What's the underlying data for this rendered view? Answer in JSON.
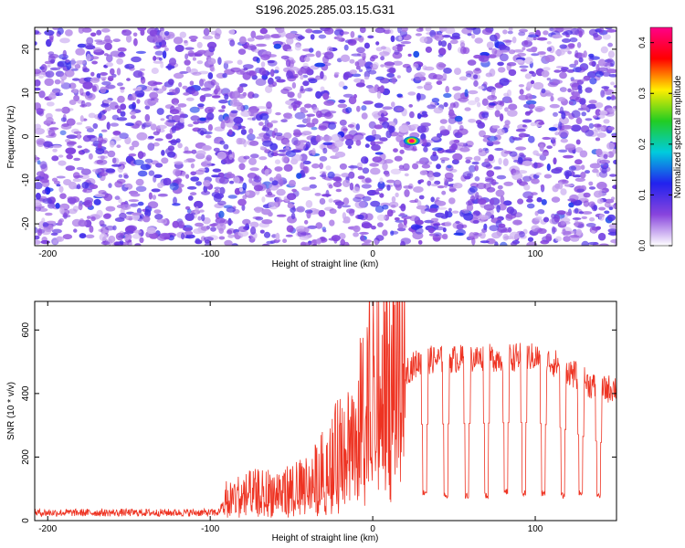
{
  "title": "S196.2025.285.03.15.G31",
  "chart_data": [
    {
      "type": "heatmap",
      "xlabel": "Height of straight line (km)",
      "ylabel": "Frequency (Hz)",
      "xlim": [
        -208,
        150
      ],
      "ylim": [
        -25,
        25
      ],
      "xticks": [
        -200,
        -100,
        0,
        100
      ],
      "yticks": [
        -20,
        -10,
        0,
        10,
        20
      ],
      "colorbar": {
        "label": "Normalized spectral amplitude",
        "range": [
          0,
          0.43
        ],
        "ticks": [
          0.0,
          0.1,
          0.2,
          0.3,
          0.4
        ],
        "colors": [
          "#ffffff",
          "#8844dd",
          "#2222ee",
          "#00ccdd",
          "#22cc22",
          "#ffee00",
          "#ff0000",
          "#ff0088"
        ]
      },
      "peak": {
        "x": 24,
        "y": -1,
        "value": 0.42
      }
    },
    {
      "type": "line",
      "xlabel": "Height of straight line (km)",
      "ylabel": "SNR (10 * v/v)",
      "xlim": [
        -208,
        150
      ],
      "ylim": [
        0,
        690
      ],
      "xticks": [
        -200,
        -100,
        0,
        100
      ],
      "yticks": [
        0,
        200,
        400,
        600
      ],
      "color": "#ee3322",
      "envelope": [
        [
          -208,
          25
        ],
        [
          -150,
          25
        ],
        [
          -95,
          25
        ],
        [
          -90,
          70
        ],
        [
          -75,
          85
        ],
        [
          -60,
          90
        ],
        [
          -45,
          100
        ],
        [
          -35,
          130
        ],
        [
          -25,
          180
        ],
        [
          -15,
          250
        ],
        [
          -5,
          330
        ],
        [
          0,
          370
        ],
        [
          10,
          420
        ],
        [
          20,
          470
        ],
        [
          30,
          505
        ],
        [
          60,
          510
        ],
        [
          90,
          515
        ],
        [
          100,
          515
        ],
        [
          115,
          490
        ],
        [
          130,
          440
        ],
        [
          140,
          410
        ],
        [
          150,
          420
        ]
      ],
      "spike": {
        "x": -2,
        "y": 690
      },
      "dips": [
        {
          "x": 32,
          "y": 80
        },
        {
          "x": 45,
          "y": 70
        },
        {
          "x": 58,
          "y": 70
        },
        {
          "x": 70,
          "y": 70
        },
        {
          "x": 82,
          "y": 80
        },
        {
          "x": 93,
          "y": 75
        },
        {
          "x": 105,
          "y": 75
        },
        {
          "x": 117,
          "y": 70
        },
        {
          "x": 128,
          "y": 80
        },
        {
          "x": 139,
          "y": 70
        }
      ]
    }
  ]
}
